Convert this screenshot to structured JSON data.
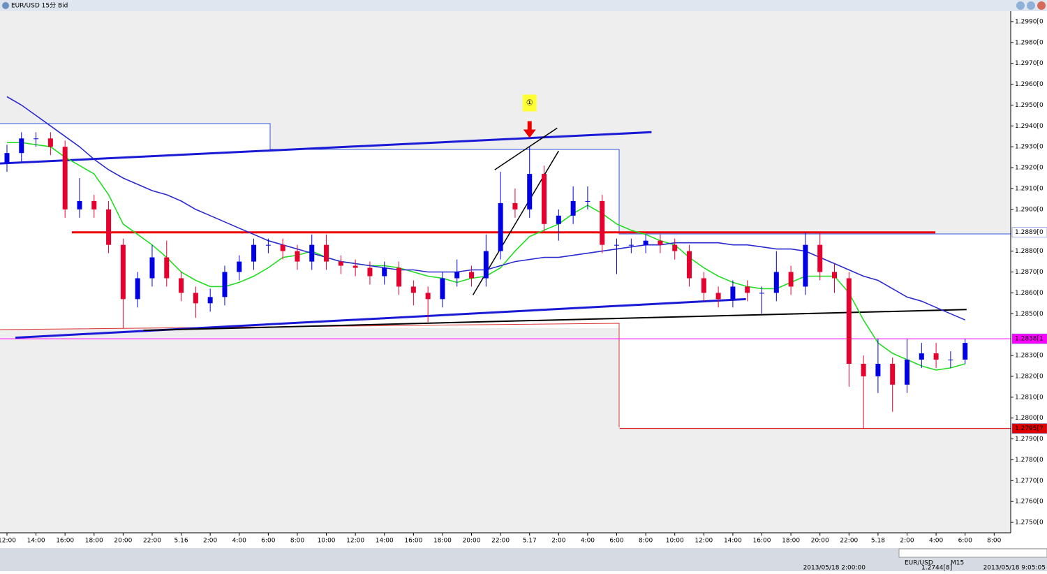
{
  "window": {
    "title": "EUR/USD 15分 Bid"
  },
  "chart_data": {
    "type": "candlestick",
    "xlim": [
      -0.48,
      69.14
    ],
    "ylim": [
      1.2745,
      1.2995
    ],
    "xticks": [
      {
        "value": 0,
        "label": "12:00"
      },
      {
        "value": 2,
        "label": "14:00"
      },
      {
        "value": 4,
        "label": "16:00"
      },
      {
        "value": 6,
        "label": "18:00"
      },
      {
        "value": 8,
        "label": "20:00"
      },
      {
        "value": 10,
        "label": "22:00"
      },
      {
        "value": 12,
        "label": "5.16"
      },
      {
        "value": 14,
        "label": "2:00"
      },
      {
        "value": 16,
        "label": "4:00"
      },
      {
        "value": 18,
        "label": "6:00"
      },
      {
        "value": 20,
        "label": "8:00"
      },
      {
        "value": 22,
        "label": "10:00"
      },
      {
        "value": 24,
        "label": "12:00"
      },
      {
        "value": 26,
        "label": "14:00"
      },
      {
        "value": 28,
        "label": "16:00"
      },
      {
        "value": 30,
        "label": "18:00"
      },
      {
        "value": 32,
        "label": "20:00"
      },
      {
        "value": 34,
        "label": "22:00"
      },
      {
        "value": 36,
        "label": "5.17"
      },
      {
        "value": 38,
        "label": "2:00"
      },
      {
        "value": 40,
        "label": "4:00"
      },
      {
        "value": 42,
        "label": "6:00"
      },
      {
        "value": 44,
        "label": "8:00"
      },
      {
        "value": 46,
        "label": "10:00"
      },
      {
        "value": 48,
        "label": "12:00"
      },
      {
        "value": 50,
        "label": "14:00"
      },
      {
        "value": 52,
        "label": "16:00"
      },
      {
        "value": 54,
        "label": "18:00"
      },
      {
        "value": 56,
        "label": "20:00"
      },
      {
        "value": 58,
        "label": "22:00"
      },
      {
        "value": 60,
        "label": "5.18"
      },
      {
        "value": 62,
        "label": "2:00"
      },
      {
        "value": 64,
        "label": "4:00"
      },
      {
        "value": 66,
        "label": "6:00"
      },
      {
        "value": 68,
        "label": "8:00"
      }
    ],
    "yticks": [
      {
        "value": 1.299,
        "label": "1.2990[0"
      },
      {
        "value": 1.298,
        "label": "1.2980[0"
      },
      {
        "value": 1.297,
        "label": "1.2970[0"
      },
      {
        "value": 1.296,
        "label": "1.2960[0"
      },
      {
        "value": 1.295,
        "label": "1.2950[0"
      },
      {
        "value": 1.294,
        "label": "1.2940[0"
      },
      {
        "value": 1.293,
        "label": "1.2930[0"
      },
      {
        "value": 1.292,
        "label": "1.2920[0"
      },
      {
        "value": 1.291,
        "label": "1.2910[0"
      },
      {
        "value": 1.29,
        "label": "1.2900[0"
      },
      {
        "value": 1.288,
        "label": "1.2880[0"
      },
      {
        "value": 1.287,
        "label": "1.2870[0"
      },
      {
        "value": 1.286,
        "label": "1.2860[0"
      },
      {
        "value": 1.285,
        "label": "1.2850[0"
      },
      {
        "value": 1.283,
        "label": "1.2830[0"
      },
      {
        "value": 1.282,
        "label": "1.2820[0"
      },
      {
        "value": 1.281,
        "label": "1.2810[0"
      },
      {
        "value": 1.28,
        "label": "1.2800[0"
      },
      {
        "value": 1.279,
        "label": "1.2790[0"
      },
      {
        "value": 1.278,
        "label": "1.2780[0"
      },
      {
        "value": 1.277,
        "label": "1.2770[0"
      },
      {
        "value": 1.276,
        "label": "1.2760[0"
      },
      {
        "value": 1.275,
        "label": "1.2750[0"
      }
    ],
    "candles": {
      "up_color": "#0000e6",
      "down_color": "#e6002e",
      "open": [
        1.2922,
        1.2927,
        1.2934,
        1.2934,
        1.293,
        1.29,
        1.2904,
        1.29,
        1.2883,
        1.2857,
        1.2867,
        1.2877,
        1.2867,
        1.286,
        1.2855,
        1.2858,
        1.287,
        1.2875,
        1.2883,
        1.2883,
        1.288,
        1.2875,
        1.2883,
        1.2875,
        1.2873,
        1.2872,
        1.2868,
        1.2872,
        1.2863,
        1.286,
        1.2857,
        1.2867,
        1.287,
        1.2867,
        1.288,
        1.2903,
        1.29,
        1.2917,
        1.2893,
        1.2897,
        1.2904,
        1.2904,
        1.2883,
        1.2883,
        1.2883,
        1.2885,
        1.2883,
        1.288,
        1.2867,
        1.286,
        1.2857,
        1.2863,
        1.286,
        1.286,
        1.287,
        1.2863,
        1.2883,
        1.287,
        1.2867,
        1.2826,
        1.282,
        1.2826,
        1.2816,
        1.2828,
        1.2831,
        1.2828,
        1.2828
      ],
      "high": [
        1.2931,
        1.2937,
        1.2937,
        1.2937,
        1.2933,
        1.2915,
        1.2907,
        1.2904,
        1.2886,
        1.287,
        1.2883,
        1.2885,
        1.287,
        1.2863,
        1.2862,
        1.2873,
        1.2878,
        1.2886,
        1.2886,
        1.2886,
        1.2883,
        1.2888,
        1.2888,
        1.2878,
        1.2876,
        1.2875,
        1.2875,
        1.2875,
        1.2866,
        1.2863,
        1.287,
        1.2876,
        1.2873,
        1.2888,
        1.2918,
        1.291,
        1.293,
        1.2921,
        1.29,
        1.2911,
        1.2911,
        1.2907,
        1.2886,
        1.2886,
        1.2888,
        1.2888,
        1.2886,
        1.2883,
        1.287,
        1.2863,
        1.2866,
        1.2866,
        1.2863,
        1.288,
        1.2873,
        1.2889,
        1.2889,
        1.2874,
        1.287,
        1.283,
        1.2838,
        1.2829,
        1.2838,
        1.2836,
        1.2836,
        1.2832,
        1.2838
      ],
      "low": [
        1.2918,
        1.2923,
        1.293,
        1.2926,
        1.2896,
        1.2896,
        1.2896,
        1.2879,
        1.2843,
        1.2853,
        1.2863,
        1.2863,
        1.2856,
        1.2848,
        1.2851,
        1.2854,
        1.2866,
        1.2871,
        1.2879,
        1.2876,
        1.2871,
        1.2871,
        1.2871,
        1.2869,
        1.2868,
        1.2864,
        1.2864,
        1.2859,
        1.2854,
        1.2846,
        1.2853,
        1.2863,
        1.2863,
        1.2863,
        1.2876,
        1.2896,
        1.2896,
        1.2889,
        1.2885,
        1.2893,
        1.29,
        1.2879,
        1.2869,
        1.2879,
        1.2879,
        1.2879,
        1.2876,
        1.2863,
        1.2856,
        1.2853,
        1.2853,
        1.2856,
        1.285,
        1.2856,
        1.2859,
        1.2859,
        1.2866,
        1.286,
        1.2815,
        1.2795,
        1.2812,
        1.2803,
        1.2812,
        1.2824,
        1.2824,
        1.2824,
        1.2826
      ],
      "close": [
        1.2927,
        1.2934,
        1.2934,
        1.293,
        1.29,
        1.2904,
        1.29,
        1.2883,
        1.2857,
        1.2867,
        1.2877,
        1.2867,
        1.286,
        1.2855,
        1.2858,
        1.287,
        1.2875,
        1.2883,
        1.2883,
        1.288,
        1.2875,
        1.2883,
        1.2875,
        1.2873,
        1.2872,
        1.2868,
        1.2872,
        1.2863,
        1.286,
        1.2857,
        1.2867,
        1.287,
        1.2867,
        1.288,
        1.2903,
        1.29,
        1.2917,
        1.2893,
        1.2897,
        1.2904,
        1.2904,
        1.2883,
        1.2883,
        1.2883,
        1.2885,
        1.2883,
        1.288,
        1.2867,
        1.286,
        1.2857,
        1.2863,
        1.286,
        1.286,
        1.287,
        1.2863,
        1.2883,
        1.287,
        1.2867,
        1.2826,
        1.282,
        1.2826,
        1.2816,
        1.2828,
        1.2831,
        1.2828,
        1.2828,
        1.2836
      ]
    },
    "series": [
      {
        "color": "#22dd22",
        "values": [
          1.2932,
          1.2932,
          1.2931,
          1.293,
          1.2925,
          1.2921,
          1.2917,
          1.2907,
          1.2893,
          1.2888,
          1.2883,
          1.2877,
          1.287,
          1.2866,
          1.2863,
          1.2863,
          1.2865,
          1.2868,
          1.2872,
          1.2877,
          1.2878,
          1.288,
          1.2877,
          1.2875,
          1.2874,
          1.2873,
          1.2873,
          1.2872,
          1.287,
          1.2868,
          1.2867,
          1.2865,
          1.2867,
          1.2868,
          1.2872,
          1.288,
          1.2887,
          1.289,
          1.2893,
          1.2898,
          1.2902,
          1.2898,
          1.2893,
          1.289,
          1.2888,
          1.2885,
          1.2883,
          1.2877,
          1.2872,
          1.2868,
          1.2865,
          1.2863,
          1.2862,
          1.2862,
          1.2865,
          1.2868,
          1.2868,
          1.2868,
          1.286,
          1.2847,
          1.2836,
          1.2831,
          1.2828,
          1.2825,
          1.2823,
          1.2824,
          1.2826
        ]
      },
      {
        "color": "#2a2ad0",
        "values": [
          1.2954,
          1.295,
          1.2945,
          1.294,
          1.2935,
          1.293,
          1.2924,
          1.2919,
          1.2915,
          1.2912,
          1.2909,
          1.2907,
          1.2904,
          1.29,
          1.2897,
          1.2894,
          1.2891,
          1.2888,
          1.2885,
          1.2883,
          1.2881,
          1.2879,
          1.2877,
          1.2875,
          1.2874,
          1.2873,
          1.2872,
          1.2871,
          1.2871,
          1.287,
          1.287,
          1.287,
          1.2871,
          1.2871,
          1.2873,
          1.2875,
          1.2876,
          1.2877,
          1.2877,
          1.2878,
          1.2879,
          1.288,
          1.2881,
          1.2882,
          1.2883,
          1.2883,
          1.2884,
          1.2884,
          1.2884,
          1.2884,
          1.2883,
          1.2883,
          1.2882,
          1.2881,
          1.2881,
          1.288,
          1.2877,
          1.2874,
          1.2871,
          1.2868,
          1.2866,
          1.2862,
          1.2858,
          1.2856,
          1.2853,
          1.285,
          1.2847
        ]
      }
    ],
    "levels": [
      {
        "value": 1.2889,
        "label": "1.2889[0",
        "color": "#ee0000",
        "width": 3,
        "from": 4.47,
        "to": 63.95,
        "label_fill": "#ffffff",
        "label_color": "#0000aa"
      },
      {
        "value": 1.2838,
        "label": "1.2838[1",
        "color": "#ff00ff",
        "width": 1,
        "from": -0.48,
        "to": 69.14,
        "label_fill": "#ff00ff",
        "label_color": "#ffffff"
      },
      {
        "value": 1.2795,
        "label": "1.2795[7",
        "color": "#e00000",
        "width": 1,
        "from": 42.2,
        "to": 69.14,
        "label_fill": "#e00000",
        "label_color": "#ffffff"
      }
    ],
    "trendlines": [
      {
        "color": "#1a1ad6",
        "width": 3,
        "x": [
          -0.48,
          44.4
        ],
        "y": [
          1.2922,
          1.2937
        ]
      },
      {
        "color": "#1a1ad6",
        "width": 3,
        "x": [
          0.58,
          50.9
        ],
        "y": [
          1.28385,
          1.2857
        ]
      },
      {
        "color": "#000000",
        "width": 2,
        "x": [
          9.4,
          66.1
        ],
        "y": [
          1.2842,
          1.2852
        ]
      },
      {
        "color": "#000000",
        "width": 1.5,
        "x": [
          32.1,
          38.0
        ],
        "y": [
          1.2859,
          1.2928
        ]
      },
      {
        "color": "#000000",
        "width": 1.5,
        "x": [
          33.6,
          37.9
        ],
        "y": [
          1.2919,
          1.2939
        ]
      }
    ],
    "annotations": [
      {
        "text": "①",
        "x": 36,
        "y": 1.2951
      }
    ]
  },
  "status_bar": {
    "symbol": "EUR/USD",
    "timeframe": "M15",
    "bar_time": "2013/05/18 2:00:00",
    "bar_price": "1.2744[8]",
    "server_time": "2013/05/18 9:05:05"
  }
}
